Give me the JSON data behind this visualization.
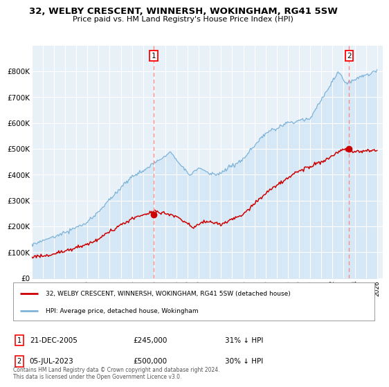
{
  "title": "32, WELBY CRESCENT, WINNERSH, WOKINGHAM, RG41 5SW",
  "subtitle": "Price paid vs. HM Land Registry's House Price Index (HPI)",
  "hpi_color": "#7eb3d8",
  "hpi_fill": "#d6e8f5",
  "price_color": "#cc0000",
  "dashed_color": "#ff8888",
  "ylim": [
    0,
    900000
  ],
  "yticks": [
    0,
    100000,
    200000,
    300000,
    400000,
    500000,
    600000,
    700000,
    800000
  ],
  "ytick_labels": [
    "£0",
    "£100K",
    "£200K",
    "£300K",
    "£400K",
    "£500K",
    "£600K",
    "£700K",
    "£800K"
  ],
  "xlim_start": 1995.0,
  "xlim_end": 2026.5,
  "xticks": [
    1995,
    1996,
    1997,
    1998,
    1999,
    2000,
    2001,
    2002,
    2003,
    2004,
    2005,
    2006,
    2007,
    2008,
    2009,
    2010,
    2011,
    2012,
    2013,
    2014,
    2015,
    2016,
    2017,
    2018,
    2019,
    2020,
    2021,
    2022,
    2023,
    2024,
    2025,
    2026
  ],
  "sale1_x": 2005.97,
  "sale1_y": 245000,
  "sale1_label": "1",
  "sale1_date": "21-DEC-2005",
  "sale1_price": "£245,000",
  "sale1_hpi": "31% ↓ HPI",
  "sale2_x": 2023.5,
  "sale2_y": 500000,
  "sale2_label": "2",
  "sale2_date": "05-JUL-2023",
  "sale2_price": "£500,000",
  "sale2_hpi": "30% ↓ HPI",
  "legend_line1": "32, WELBY CRESCENT, WINNERSH, WOKINGHAM, RG41 5SW (detached house)",
  "legend_line2": "HPI: Average price, detached house, Wokingham",
  "footnote": "Contains HM Land Registry data © Crown copyright and database right 2024.\nThis data is licensed under the Open Government Licence v3.0.",
  "background_color": "#ffffff",
  "plot_bg_color": "#e8f0f8",
  "grid_color": "#ffffff"
}
